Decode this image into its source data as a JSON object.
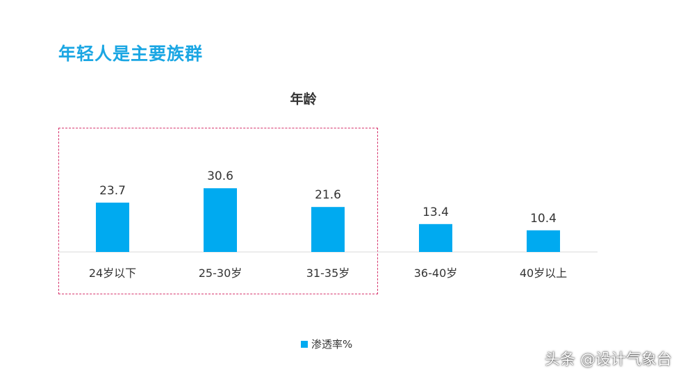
{
  "slide": {
    "title": "年轻人是主要族群"
  },
  "chart_data": {
    "type": "bar",
    "title": "年龄",
    "categories": [
      "24岁以下",
      "25-30岁",
      "31-35岁",
      "36-40岁",
      "40岁以上"
    ],
    "series": [
      {
        "name": "渗透率%",
        "values": [
          23.7,
          30.6,
          21.6,
          13.4,
          10.4
        ]
      }
    ],
    "data_labels": true,
    "grid": false,
    "legend_position": "bottom",
    "bar_color": "#00aaf0",
    "highlighted_categories": [
      "24岁以下",
      "25-30岁",
      "31-35岁"
    ],
    "highlight_color": "#d6336c"
  },
  "watermark": "头条 @设计气象台"
}
